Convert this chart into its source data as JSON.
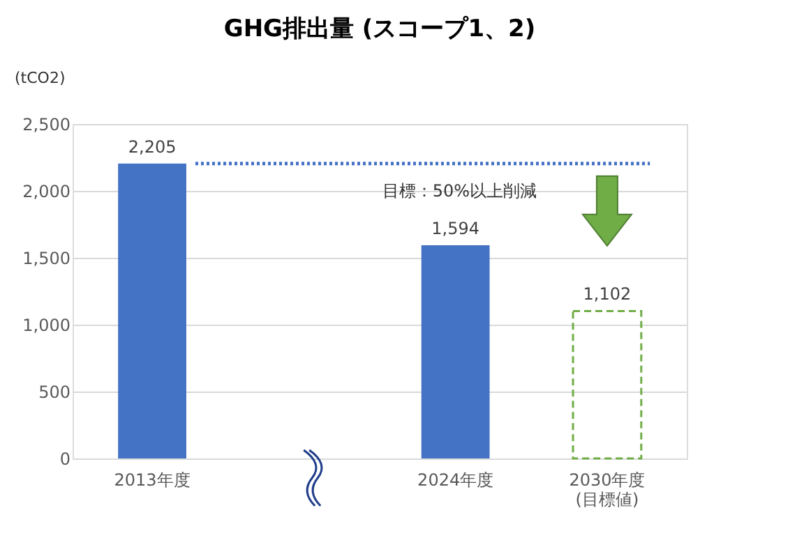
{
  "chart_data": {
    "type": "bar",
    "title": "GHG排出量 (スコープ1、2)",
    "ylabel": "(tCO2)",
    "categories": [
      "2013年度",
      null,
      "2024年度",
      "2030年度\n(目標値)"
    ],
    "series": [
      {
        "color": "#4472c4",
        "values": [
          2205,
          null,
          1594,
          null
        ],
        "value_labels": [
          "2,205",
          null,
          "1,594",
          null
        ]
      },
      {
        "color": "#70ad47",
        "values": [
          null,
          null,
          null,
          1102
        ],
        "value_labels": [
          null,
          null,
          null,
          "1,102"
        ],
        "line_style": "dashed"
      }
    ],
    "ylim": [
      0,
      2500
    ],
    "yticks": [
      0,
      500,
      {
        "value": 1000,
        "label": "1,000"
      },
      {
        "value": 1500,
        "label": "1,500"
      },
      {
        "value": 2000,
        "label": "2,000"
      },
      {
        "value": 2500,
        "label": "2,500"
      }
    ],
    "grid": "y",
    "ref_lines": [
      {
        "axis": "y",
        "value": 2205,
        "color": "#4472c4",
        "line_style": "dotted"
      }
    ],
    "annotations": [
      "目標：50%以上削減"
    ]
  }
}
